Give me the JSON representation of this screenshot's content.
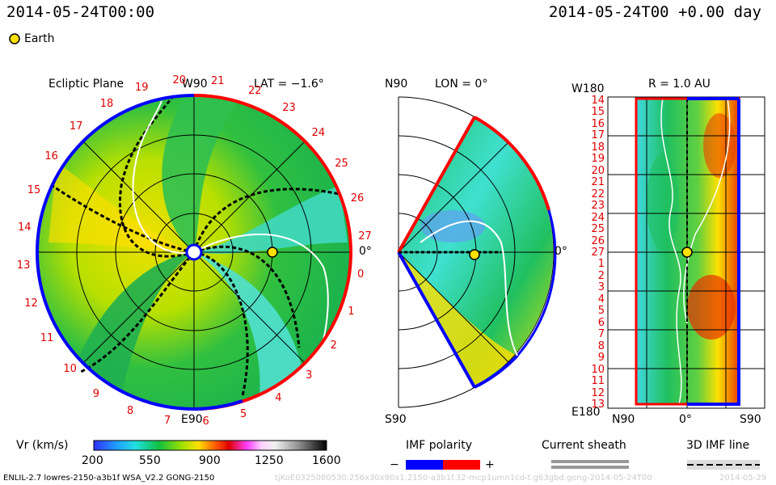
{
  "header": {
    "left_time": "2014-05-24T00:00",
    "right_time": "2014-05-24T00 +0.00 day",
    "legend_earth": "Earth"
  },
  "ecliptic_panel": {
    "title": "Ecliptic Plane",
    "top_label": "W90",
    "lat_label": "LAT = −1.6°",
    "bottom_label": "E90",
    "right_label": "0°",
    "carrington_ticks": [
      "20",
      "21",
      "22",
      "23",
      "24",
      "25",
      "26",
      "27",
      "0",
      "1",
      "2",
      "3",
      "4",
      "5",
      "6",
      "7",
      "8",
      "9",
      "10",
      "11",
      "12",
      "13",
      "14",
      "15",
      "16",
      "17",
      "18",
      "19"
    ]
  },
  "meridional_panel": {
    "top_left": "N90",
    "lon_label": "LON = 0°",
    "right_label": "0°",
    "bottom_left": "S90"
  },
  "radial_panel": {
    "r_label": "R = 1.0 AU",
    "top_left": "W180",
    "bottom_left": "E180",
    "bottom_n": "N90",
    "bottom_mid": "0°",
    "bottom_s": "S90",
    "left_ticks": [
      "14",
      "15",
      "16",
      "17",
      "18",
      "19",
      "20",
      "21",
      "22",
      "23",
      "24",
      "25",
      "26",
      "27",
      "1",
      "2",
      "3",
      "4",
      "5",
      "6",
      "7",
      "8",
      "9",
      "10",
      "11",
      "12",
      "13"
    ]
  },
  "colorbar": {
    "label": "Vr (km/s)",
    "ticks": [
      "200",
      "550",
      "900",
      "1250",
      "1600"
    ]
  },
  "imf_polarity": {
    "title": "IMF polarity",
    "minus": "−",
    "plus": "+",
    "colors": {
      "negative": "#0000ff",
      "positive": "#ff0000"
    }
  },
  "current_sheath": {
    "title": "Current sheath"
  },
  "imf_line": {
    "title": "3D IMF line"
  },
  "footer": {
    "model_info": "ENLIL-2.7 lowres-2150-a3b1f WSA_V2.2 GONG-2150",
    "run_id": "tjKoE0325080530.256x30x90x1.2150-a3b1f.32-mcp1umn1cd-t.g63gbd.gong-2014-05-24T00",
    "run_date": "2014-05-29"
  }
}
